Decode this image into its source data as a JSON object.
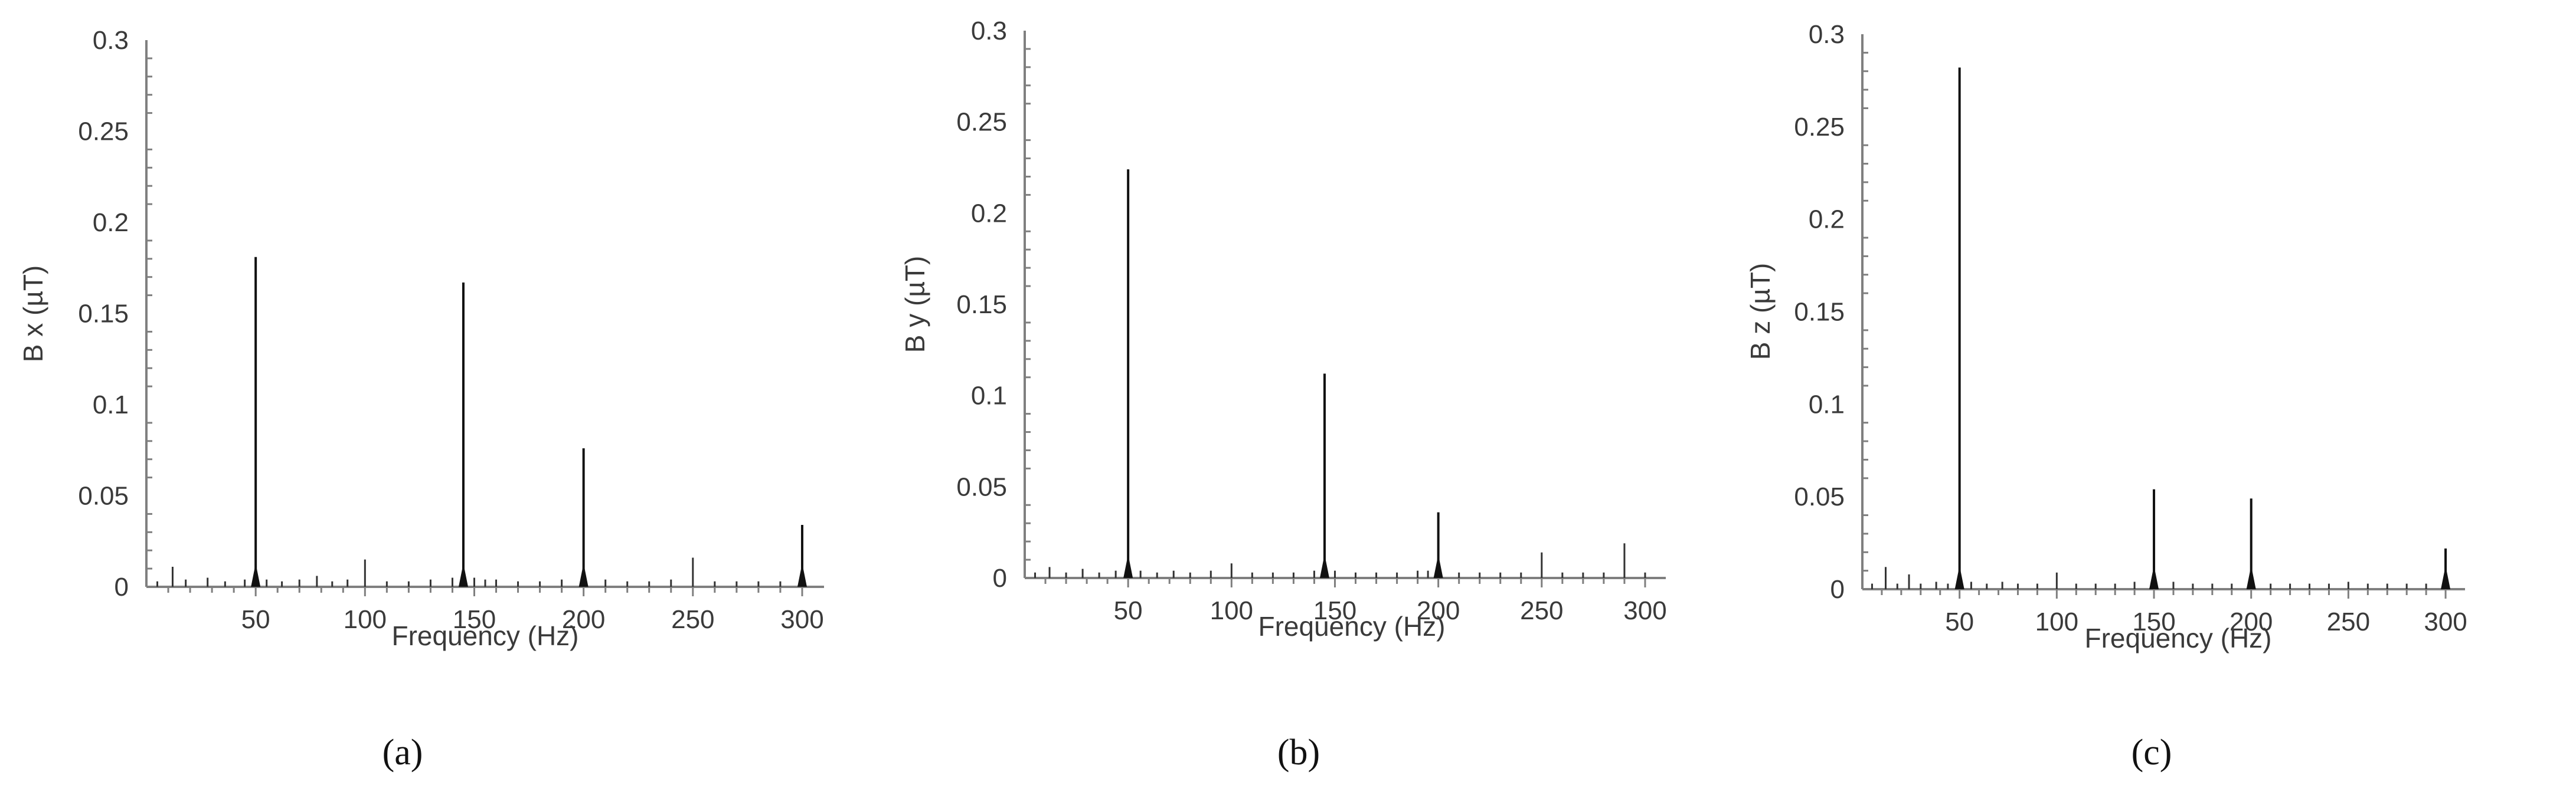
{
  "chart_data": [
    {
      "type": "line",
      "panel_label": "(a)",
      "xlabel": "Frequency (Hz)",
      "ylabel": "B x (µT)",
      "x_ticks": [
        "50",
        "100",
        "150",
        "200",
        "250",
        "300"
      ],
      "y_ticks": [
        "0",
        "0.05",
        "0.1",
        "0.15",
        "0.2",
        "0.25",
        "0.3"
      ],
      "xlim": [
        0,
        310
      ],
      "ylim": [
        0,
        0.3
      ],
      "grid": false,
      "series": [
        {
          "x": [
            5,
            12,
            18,
            28,
            36,
            45,
            50,
            55,
            62,
            70,
            78,
            85,
            92,
            100,
            110,
            120,
            130,
            140,
            145,
            150,
            155,
            160,
            170,
            180,
            190,
            200,
            210,
            220,
            230,
            240,
            250,
            260,
            270,
            280,
            290,
            300
          ],
          "values": [
            0.003,
            0.011,
            0.004,
            0.005,
            0.003,
            0.004,
            0.181,
            0.004,
            0.003,
            0.004,
            0.006,
            0.003,
            0.004,
            0.015,
            0.003,
            0.003,
            0.004,
            0.005,
            0.167,
            0.005,
            0.004,
            0.004,
            0.003,
            0.003,
            0.004,
            0.076,
            0.004,
            0.003,
            0.003,
            0.004,
            0.016,
            0.003,
            0.003,
            0.003,
            0.003,
            0.034
          ]
        }
      ]
    },
    {
      "type": "line",
      "panel_label": "(b)",
      "xlabel": "Frequency (Hz)",
      "ylabel": "B y (µT)",
      "x_ticks": [
        "50",
        "100",
        "150",
        "200",
        "250",
        "300"
      ],
      "y_ticks": [
        "0",
        "0.05",
        "0.1",
        "0.15",
        "0.2",
        "0.25",
        "0.3"
      ],
      "xlim": [
        0,
        310
      ],
      "ylim": [
        0,
        0.3
      ],
      "grid": false,
      "series": [
        {
          "x": [
            5,
            12,
            20,
            28,
            36,
            44,
            50,
            56,
            64,
            72,
            80,
            90,
            100,
            110,
            120,
            130,
            140,
            145,
            150,
            160,
            170,
            180,
            190,
            195,
            200,
            210,
            220,
            230,
            240,
            250,
            260,
            270,
            280,
            290,
            300
          ],
          "values": [
            0.003,
            0.006,
            0.003,
            0.005,
            0.003,
            0.004,
            0.224,
            0.004,
            0.003,
            0.004,
            0.003,
            0.004,
            0.008,
            0.003,
            0.003,
            0.003,
            0.004,
            0.112,
            0.004,
            0.003,
            0.003,
            0.003,
            0.004,
            0.004,
            0.036,
            0.003,
            0.003,
            0.003,
            0.003,
            0.014,
            0.003,
            0.003,
            0.003,
            0.019,
            0.003
          ]
        }
      ]
    },
    {
      "type": "line",
      "panel_label": "(c)",
      "xlabel": "Frequency (Hz)",
      "ylabel": "B z (µT)",
      "x_ticks": [
        "50",
        "100",
        "150",
        "200",
        "250",
        "300"
      ],
      "y_ticks": [
        "0",
        "0.05",
        "0.1",
        "0.15",
        "0.2",
        "0.25",
        "0.3"
      ],
      "xlim": [
        0,
        310
      ],
      "ylim": [
        0,
        0.3
      ],
      "grid": false,
      "series": [
        {
          "x": [
            5,
            12,
            18,
            24,
            30,
            38,
            44,
            50,
            56,
            64,
            72,
            80,
            90,
            100,
            110,
            120,
            130,
            140,
            150,
            160,
            170,
            180,
            190,
            200,
            210,
            220,
            230,
            240,
            250,
            260,
            270,
            280,
            290,
            300
          ],
          "values": [
            0.003,
            0.012,
            0.003,
            0.008,
            0.003,
            0.004,
            0.003,
            0.282,
            0.004,
            0.003,
            0.004,
            0.003,
            0.003,
            0.009,
            0.003,
            0.003,
            0.003,
            0.004,
            0.054,
            0.004,
            0.003,
            0.003,
            0.003,
            0.049,
            0.003,
            0.003,
            0.003,
            0.003,
            0.004,
            0.003,
            0.003,
            0.003,
            0.003,
            0.022
          ]
        }
      ]
    }
  ]
}
